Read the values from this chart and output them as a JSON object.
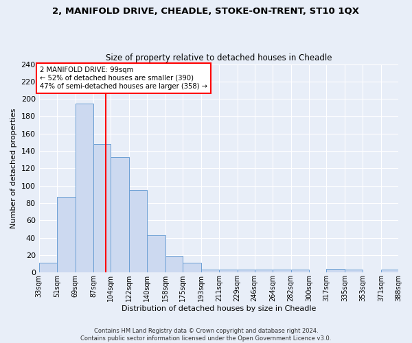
{
  "title1": "2, MANIFOLD DRIVE, CHEADLE, STOKE-ON-TRENT, ST10 1QX",
  "title2": "Size of property relative to detached houses in Cheadle",
  "xlabel": "Distribution of detached houses by size in Cheadle",
  "ylabel": "Number of detached properties",
  "bar_edges": [
    33,
    51,
    69,
    87,
    104,
    122,
    140,
    158,
    175,
    193,
    211,
    229,
    246,
    264,
    282,
    300,
    317,
    335,
    353,
    371,
    388
  ],
  "bar_heights": [
    11,
    87,
    195,
    148,
    133,
    95,
    43,
    19,
    11,
    3,
    3,
    3,
    3,
    3,
    3,
    0,
    4,
    3,
    0,
    3
  ],
  "bar_color": "#ccd9f0",
  "bar_edge_color": "#6b9fd4",
  "vline_x": 99,
  "vline_color": "red",
  "annotation_text": "2 MANIFOLD DRIVE: 99sqm\n← 52% of detached houses are smaller (390)\n47% of semi-detached houses are larger (358) →",
  "annotation_box_color": "white",
  "annotation_box_edge_color": "red",
  "ylim": [
    0,
    240
  ],
  "yticks": [
    0,
    20,
    40,
    60,
    80,
    100,
    120,
    140,
    160,
    180,
    200,
    220,
    240
  ],
  "tick_labels": [
    "33sqm",
    "51sqm",
    "69sqm",
    "87sqm",
    "104sqm",
    "122sqm",
    "140sqm",
    "158sqm",
    "175sqm",
    "193sqm",
    "211sqm",
    "229sqm",
    "246sqm",
    "264sqm",
    "282sqm",
    "300sqm",
    "317sqm",
    "335sqm",
    "353sqm",
    "371sqm",
    "388sqm"
  ],
  "footer": "Contains HM Land Registry data © Crown copyright and database right 2024.\nContains public sector information licensed under the Open Government Licence v3.0.",
  "background_color": "#e8eef8",
  "grid_color": "#ffffff"
}
